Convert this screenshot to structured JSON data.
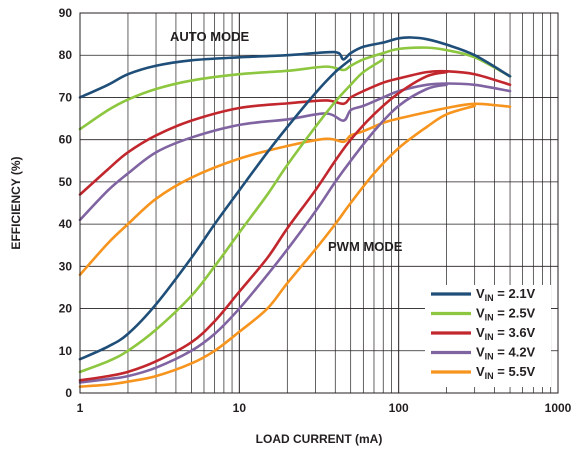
{
  "chart_data": {
    "type": "line",
    "xlabel": "LOAD CURRENT (mA)",
    "ylabel": "EFFICIENCY (%)",
    "x_scale": "log",
    "xlim": [
      1,
      1000
    ],
    "ylim": [
      0,
      90
    ],
    "x_ticks": [
      "1",
      "10",
      "100",
      "1000"
    ],
    "y_ticks": [
      "0",
      "10",
      "20",
      "30",
      "40",
      "50",
      "60",
      "70",
      "80",
      "90"
    ],
    "grid": true,
    "legend_position": "bottom-right",
    "annotations": [
      "AUTO MODE",
      "PWM MODE"
    ],
    "series": [
      {
        "name": "V_IN = 2.1V",
        "label_main": "V",
        "label_sub": "IN",
        "label_rest": " = 2.1V",
        "mode": "auto",
        "color": "#1f4e79",
        "x": [
          1,
          1.5,
          2,
          3,
          5,
          10,
          20,
          35,
          42,
          45,
          50,
          60,
          80,
          100,
          120,
          150,
          200,
          300,
          500
        ],
        "y": [
          70,
          73,
          75.5,
          77.5,
          78.8,
          79.5,
          80,
          80.7,
          80.5,
          79,
          80.5,
          82,
          83,
          84,
          84.2,
          83.8,
          82.5,
          80,
          75
        ]
      },
      {
        "name": "V_IN = 2.5V",
        "label_main": "V",
        "label_sub": "IN",
        "label_rest": " = 2.5V",
        "mode": "auto",
        "color": "#8dc63f",
        "x": [
          1,
          1.5,
          2,
          3,
          5,
          10,
          20,
          35,
          45,
          50,
          60,
          80,
          100,
          150,
          200,
          300,
          500
        ],
        "y": [
          62.5,
          67,
          69.5,
          72,
          74,
          75.5,
          76.3,
          77.3,
          76.5,
          77.5,
          79,
          80.5,
          81.5,
          81.8,
          81.2,
          79.5,
          75
        ]
      },
      {
        "name": "V_IN = 3.6V",
        "label_main": "V",
        "label_sub": "IN",
        "label_rest": " = 3.6V",
        "mode": "auto",
        "color": "#c1272d",
        "x": [
          1,
          1.5,
          2,
          3,
          5,
          10,
          20,
          35,
          45,
          50,
          60,
          80,
          100,
          150,
          200,
          300,
          500
        ],
        "y": [
          47,
          53,
          57,
          61,
          64.5,
          67.5,
          68.6,
          69.3,
          68.5,
          70,
          71.5,
          73.5,
          74.5,
          76,
          76.2,
          75.5,
          73
        ]
      },
      {
        "name": "V_IN = 4.2V",
        "label_main": "V",
        "label_sub": "IN",
        "label_rest": " = 4.2V",
        "mode": "auto",
        "color": "#8064a2",
        "x": [
          1,
          1.5,
          2,
          3,
          5,
          10,
          20,
          35,
          45,
          50,
          60,
          80,
          100,
          150,
          200,
          300,
          500
        ],
        "y": [
          41,
          48,
          52,
          57,
          60.5,
          63.5,
          64.8,
          66.2,
          64.5,
          67,
          68,
          70,
          71.5,
          73,
          73.3,
          73,
          71.5
        ]
      },
      {
        "name": "V_IN = 5.5V",
        "label_main": "V",
        "label_sub": "IN",
        "label_rest": " = 5.5V",
        "mode": "auto",
        "color": "#f7941d",
        "x": [
          1,
          1.5,
          2,
          3,
          5,
          10,
          20,
          35,
          45,
          50,
          60,
          80,
          100,
          150,
          200,
          300,
          500
        ],
        "y": [
          28,
          35.5,
          40,
          46,
          51,
          55.5,
          58.5,
          60.2,
          59.5,
          61,
          62,
          64,
          65,
          66.5,
          67.5,
          68.5,
          67.8
        ]
      },
      {
        "name": "V_IN = 2.1V (PWM)",
        "mode": "pwm",
        "color": "#1f4e79",
        "x": [
          1,
          1.5,
          2,
          3,
          5,
          7,
          10,
          15,
          20,
          30,
          40,
          50
        ],
        "y": [
          8,
          11,
          14,
          21,
          32,
          40,
          48,
          57,
          63,
          71,
          76,
          79
        ]
      },
      {
        "name": "V_IN = 2.5V (PWM)",
        "mode": "pwm",
        "color": "#8dc63f",
        "x": [
          1,
          1.5,
          2,
          3,
          5,
          7,
          10,
          15,
          20,
          30,
          40,
          50,
          60,
          80
        ],
        "y": [
          5,
          7.5,
          10,
          15,
          23,
          30,
          38,
          47,
          54,
          63,
          69,
          73,
          76,
          79
        ]
      },
      {
        "name": "V_IN = 3.6V (PWM)",
        "mode": "pwm",
        "color": "#c1272d",
        "x": [
          1,
          1.5,
          2,
          3,
          5,
          7,
          10,
          15,
          20,
          30,
          40,
          50,
          70,
          100,
          150,
          200
        ],
        "y": [
          3,
          4,
          5,
          7.5,
          12,
          17,
          24,
          32,
          39,
          48,
          55,
          60,
          66,
          71,
          75,
          76
        ]
      },
      {
        "name": "V_IN = 4.2V (PWM)",
        "mode": "pwm",
        "color": "#8064a2",
        "x": [
          1,
          1.5,
          2,
          3,
          5,
          7,
          10,
          15,
          20,
          30,
          40,
          50,
          70,
          100,
          150,
          200
        ],
        "y": [
          2.5,
          3.3,
          4,
          6,
          10,
          14,
          20,
          28,
          34,
          43,
          50,
          55,
          62,
          68,
          72,
          73
        ]
      },
      {
        "name": "V_IN = 5.5V (PWM)",
        "mode": "pwm",
        "color": "#f7941d",
        "x": [
          1,
          1.5,
          2,
          3,
          5,
          7,
          10,
          15,
          20,
          30,
          40,
          50,
          70,
          100,
          150,
          200,
          300
        ],
        "y": [
          1.5,
          2,
          2.7,
          4,
          7,
          10,
          14.5,
          20,
          26,
          34,
          40,
          45,
          52,
          58,
          63,
          66,
          68
        ]
      }
    ]
  }
}
